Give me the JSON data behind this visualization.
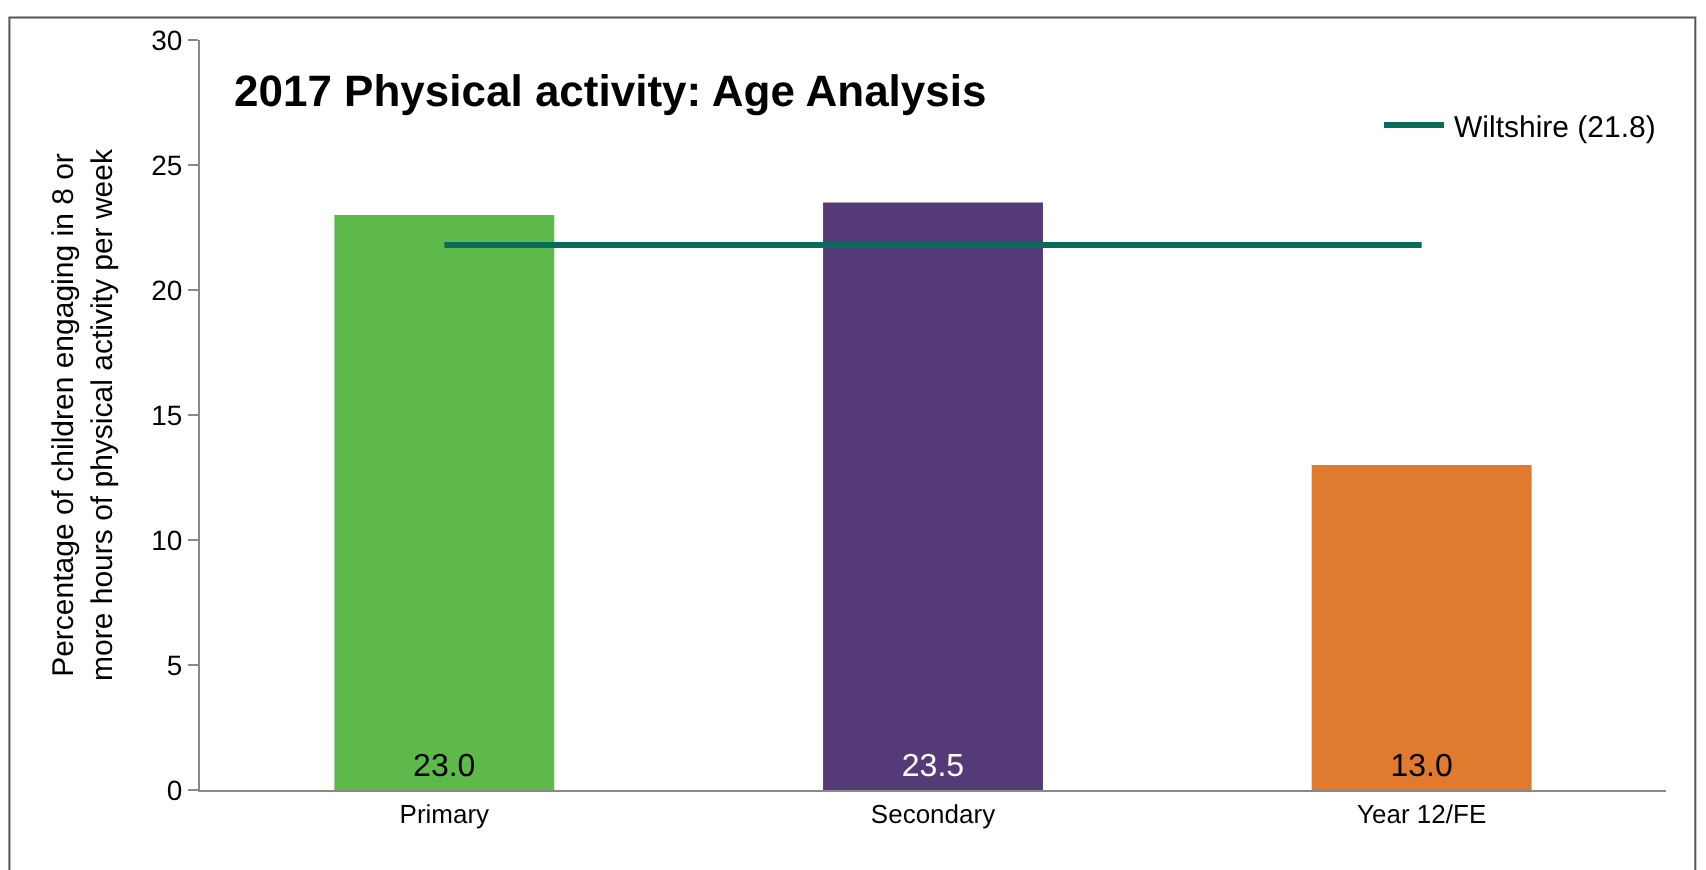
{
  "chart_data": {
    "type": "bar",
    "title": "2017 Physical activity: Age Analysis",
    "ylabel": "Percentage of children engaging in 8 or more hours of physical activity per week",
    "categories": [
      "Primary",
      "Secondary",
      "Year 12/FE"
    ],
    "series": [
      {
        "colors": [
          "#5cb94a",
          "#553a78",
          "#e07a2e"
        ],
        "values": [
          23.0,
          23.5,
          13.0
        ],
        "value_labels": [
          "23.0",
          "23.5",
          "13.0"
        ]
      },
      {
        "type": "line",
        "name": "Wiltshire (21.8)",
        "color": "#0a6b5a",
        "values": [
          21.8,
          21.8,
          21.8
        ]
      }
    ],
    "ylim": [
      0,
      30
    ],
    "yticks": [
      0,
      5,
      10,
      15,
      20,
      25,
      30
    ],
    "legend": "top right"
  }
}
